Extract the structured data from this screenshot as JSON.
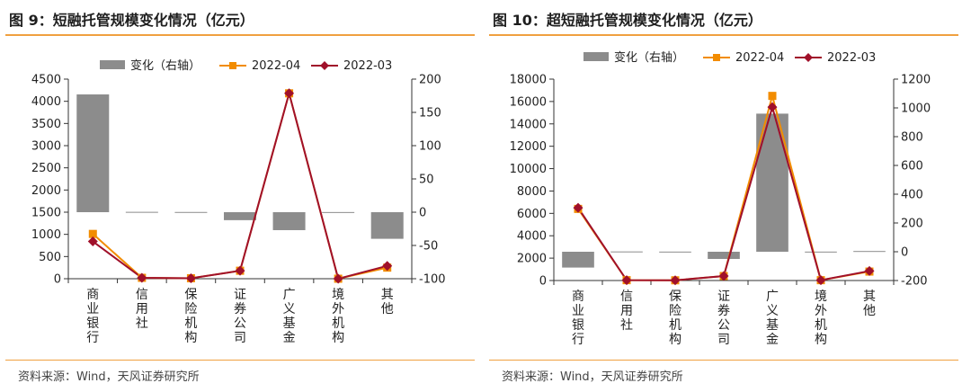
{
  "colors": {
    "bar": "#8c8c8c",
    "series_2022_04": "#f28c00",
    "series_2022_03": "#a0102a",
    "rule": "#f0a040"
  },
  "charts": [
    {
      "title": "图 9：短融托管规模变化情况（亿元）",
      "source": "资料来源：Wind，天风证券研究所"
    },
    {
      "title": "图 10：超短融托管规模变化情况（亿元）",
      "source": "资料来源：Wind，天风证券研究所"
    }
  ],
  "chart_data": [
    {
      "type": "bar+line",
      "title": "图 9：短融托管规模变化情况（亿元）",
      "categories": [
        "商业银行",
        "信用社",
        "保险机构",
        "证券公司",
        "广义基金",
        "境外机构",
        "其他"
      ],
      "legend": [
        "变化（右轴）",
        "2022-04",
        "2022-03"
      ],
      "legend_placement": "top",
      "y_left": {
        "min": 0,
        "max": 4500,
        "ticks": [
          "0",
          "500",
          "1000",
          "1500",
          "2000",
          "2500",
          "3000",
          "3500",
          "4000",
          "4500"
        ]
      },
      "y_right": {
        "min": -100,
        "max": 200,
        "ticks": [
          "-100",
          "-50",
          "0",
          "50",
          "100",
          "150",
          "200"
        ]
      },
      "series": [
        {
          "name": "变化（右轴）",
          "type": "bar",
          "axis": "right",
          "values": [
            177,
            0.5,
            0.3,
            -12,
            -27,
            0.2,
            -40
          ]
        },
        {
          "name": "2022-04",
          "type": "line",
          "axis": "left",
          "values": [
            1010,
            20,
            10,
            180,
            4180,
            0,
            250
          ]
        },
        {
          "name": "2022-03",
          "type": "line",
          "axis": "left",
          "values": [
            840,
            20,
            10,
            180,
            4180,
            0,
            290
          ]
        }
      ],
      "grid": false
    },
    {
      "type": "bar+line",
      "title": "图 10：超短融托管规模变化情况（亿元）",
      "categories": [
        "商业银行",
        "信用社",
        "保险机构",
        "证券公司",
        "广义基金",
        "境外机构",
        "其他"
      ],
      "legend": [
        "变化（右轴）",
        "2022-04",
        "2022-03"
      ],
      "legend_placement": "top",
      "y_left": {
        "min": 0,
        "max": 18000,
        "ticks": [
          "0",
          "2000",
          "4000",
          "6000",
          "8000",
          "10000",
          "12000",
          "14000",
          "16000",
          "18000"
        ]
      },
      "y_right": {
        "min": -200,
        "max": 1200,
        "ticks": [
          "-200",
          "0",
          "200",
          "400",
          "600",
          "800",
          "1000",
          "1200"
        ]
      },
      "series": [
        {
          "name": "变化（右轴）",
          "type": "bar",
          "axis": "right",
          "values": [
            -110,
            2,
            1,
            -50,
            960,
            1,
            5
          ]
        },
        {
          "name": "2022-04",
          "type": "line",
          "axis": "left",
          "values": [
            6400,
            30,
            20,
            400,
            16500,
            30,
            800
          ]
        },
        {
          "name": "2022-03",
          "type": "line",
          "axis": "left",
          "values": [
            6500,
            30,
            20,
            400,
            15500,
            30,
            850
          ]
        }
      ],
      "grid": false
    }
  ]
}
